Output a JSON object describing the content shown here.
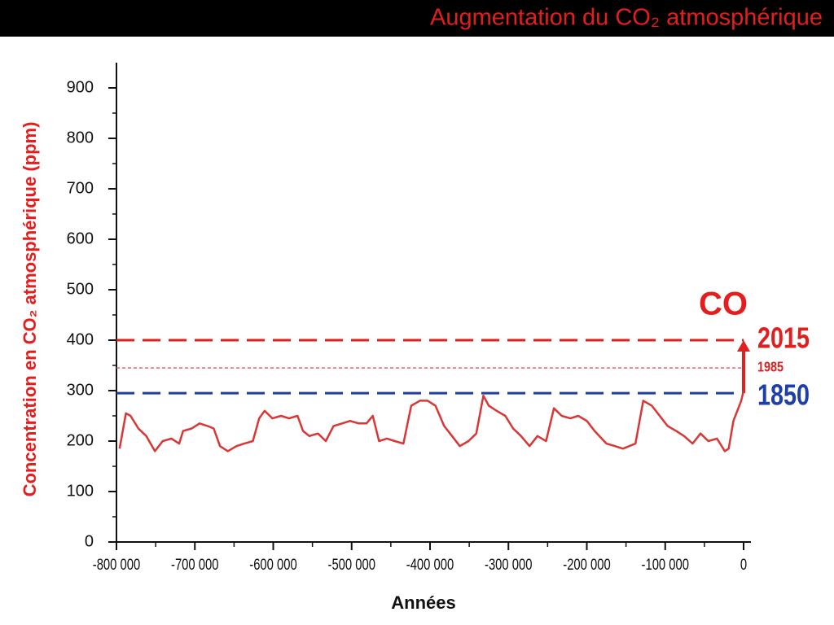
{
  "chart_data": {
    "type": "line",
    "title": "Augmentation du CO₂ atmosphérique",
    "x_label": "Années",
    "y_label": "Concentration en CO₂ atmosphérique (ppm)",
    "xlim": [
      -800000,
      0
    ],
    "ylim": [
      0,
      950
    ],
    "xticks": [
      {
        "value": -800000,
        "label": "-800 000"
      },
      {
        "value": -700000,
        "label": "-700 000"
      },
      {
        "value": -600000,
        "label": "-600 000"
      },
      {
        "value": -500000,
        "label": "-500 000"
      },
      {
        "value": -400000,
        "label": "-400 000"
      },
      {
        "value": -300000,
        "label": "-300 000"
      },
      {
        "value": -200000,
        "label": "-200 000"
      },
      {
        "value": -100000,
        "label": "-100 000"
      },
      0
    ],
    "xminorticks": [
      -750000,
      -650000,
      -550000,
      -450000,
      -350000,
      -250000,
      -150000,
      -50000
    ],
    "yticks": [
      0,
      100,
      200,
      300,
      400,
      500,
      600,
      700,
      800,
      900
    ],
    "yminorticks": [
      50,
      150,
      250,
      350,
      450,
      550,
      650,
      750,
      850
    ],
    "series": [
      {
        "color": "#d93636",
        "x": [
          -796000,
          -788000,
          -782000,
          -772000,
          -762000,
          -751000,
          -741000,
          -730000,
          -720000,
          -715000,
          -704000,
          -694000,
          -684000,
          -676000,
          -668000,
          -658000,
          -647000,
          -637000,
          -626000,
          -618000,
          -611000,
          -601000,
          -590000,
          -580000,
          -569000,
          -562000,
          -554000,
          -543000,
          -533000,
          -523000,
          -512000,
          -502000,
          -491000,
          -481000,
          -473000,
          -465000,
          -455000,
          -445000,
          -434000,
          -424000,
          -413000,
          -403000,
          -393000,
          -382000,
          -372000,
          -362000,
          -351000,
          -341000,
          -332000,
          -325000,
          -315000,
          -304000,
          -294000,
          -284000,
          -273000,
          -263000,
          -252000,
          -242000,
          -232000,
          -221000,
          -211000,
          -200000,
          -190000,
          -175000,
          -164000,
          -154000,
          -138000,
          -128000,
          -117000,
          -107000,
          -97000,
          -86000,
          -76000,
          -65000,
          -55000,
          -45000,
          -34000,
          -24000,
          -19000,
          -13000,
          -8000,
          -3000,
          0
        ],
        "values": [
          185,
          255,
          250,
          225,
          210,
          180,
          200,
          205,
          195,
          220,
          225,
          235,
          230,
          225,
          190,
          180,
          190,
          195,
          200,
          245,
          260,
          245,
          250,
          245,
          250,
          220,
          210,
          215,
          200,
          230,
          235,
          240,
          235,
          235,
          250,
          200,
          205,
          200,
          195,
          270,
          280,
          280,
          270,
          230,
          210,
          190,
          200,
          215,
          290,
          270,
          260,
          250,
          225,
          210,
          190,
          210,
          200,
          265,
          250,
          245,
          250,
          240,
          220,
          195,
          190,
          185,
          195,
          280,
          270,
          250,
          230,
          220,
          210,
          195,
          215,
          200,
          205,
          180,
          185,
          240,
          260,
          280,
          300
        ]
      }
    ],
    "reference_lines": [
      {
        "value": 400,
        "label": "2015",
        "color": "#e02020",
        "style": "dashed"
      },
      {
        "value": 345,
        "label": "1985",
        "color": "#e86060",
        "style": "dotted"
      },
      {
        "value": 295,
        "label": "1850",
        "color": "#1f3fa8",
        "style": "dashed"
      }
    ],
    "annotation": "CO"
  }
}
